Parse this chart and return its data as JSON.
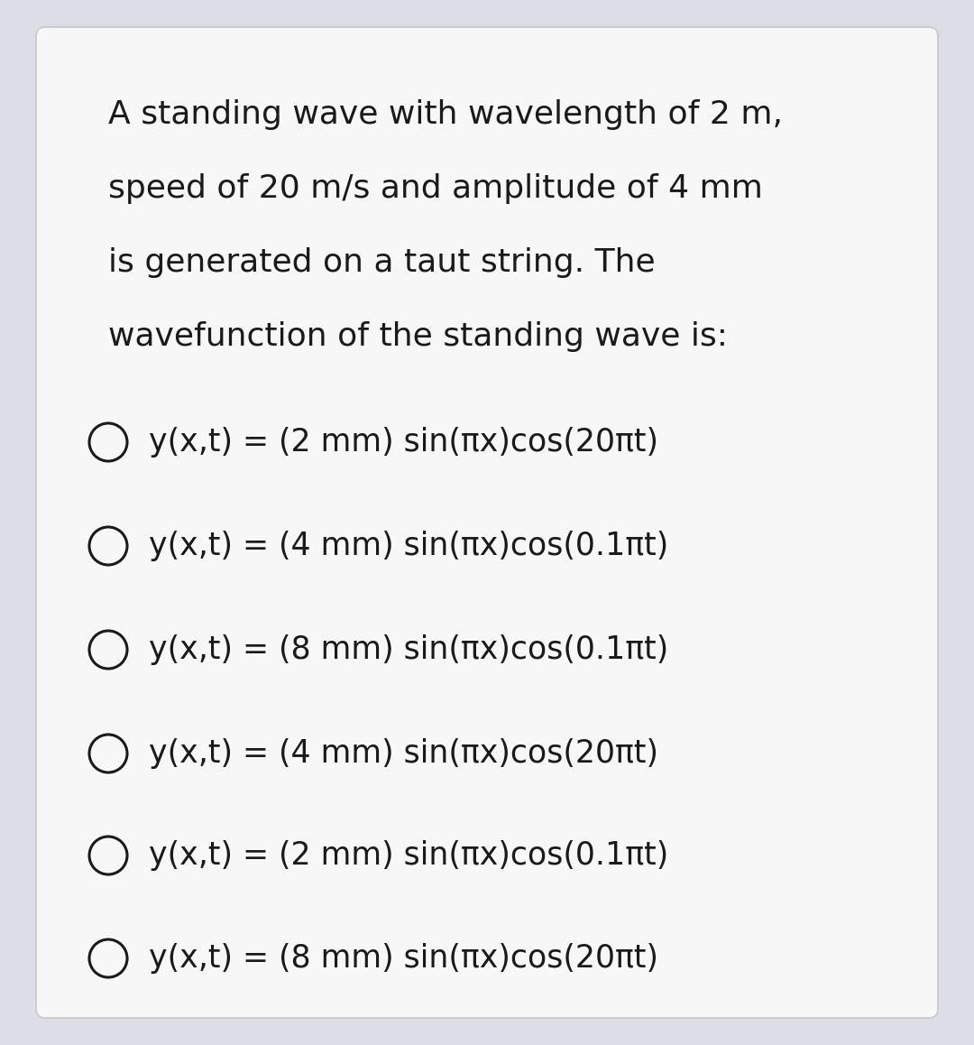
{
  "background_color": "#dddde8",
  "card_color": "#f7f7f7",
  "text_color": "#1a1a1a",
  "question_lines": [
    "A standing wave with wavelength of 2 m,",
    "speed of 20 m/s and amplitude of 4 mm",
    "is generated on a taut string. The",
    "wavefunction of the standing wave is:"
  ],
  "options": [
    "y(x,t) = (2 mm) sin(πx)cos(20πt)",
    "y(x,t) = (4 mm) sin(πx)cos(0.1πt)",
    "y(x,t) = (8 mm) sin(πx)cos(0.1πt)",
    "y(x,t) = (4 mm) sin(πx)cos(20πt)",
    "y(x,t) = (2 mm) sin(πx)cos(0.1πt)",
    "y(x,t) = (8 mm) sin(πx)cos(20πt)"
  ],
  "fig_width": 10.8,
  "fig_height": 11.58,
  "dpi": 100,
  "question_font_size": 26,
  "option_font_size": 25,
  "card_edge_color": "#c8c8c8",
  "circle_linewidth": 2.2
}
